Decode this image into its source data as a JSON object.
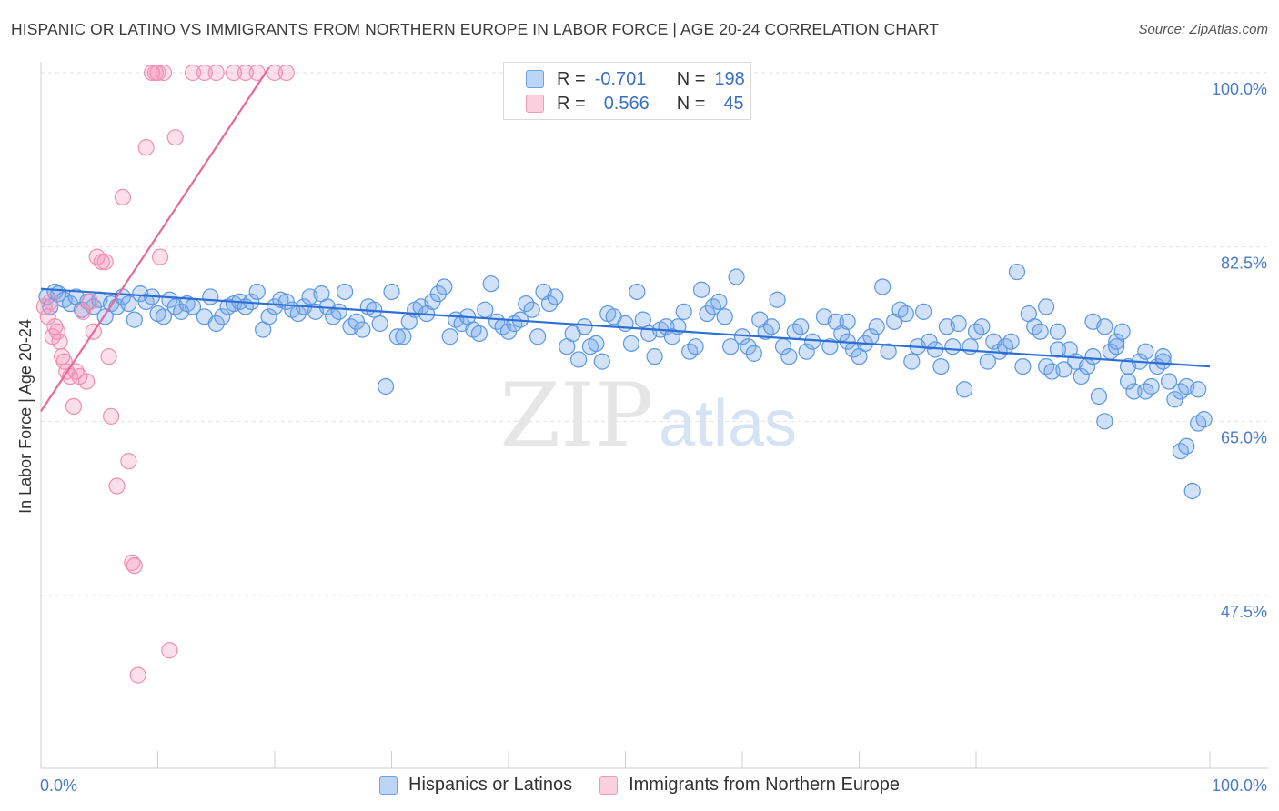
{
  "header": {
    "title": "HISPANIC OR LATINO VS IMMIGRANTS FROM NORTHERN EUROPE IN LABOR FORCE | AGE 20-24 CORRELATION CHART",
    "source": "Source: ZipAtlas.com"
  },
  "watermark": {
    "zip": "ZIP",
    "atlas": "atlas"
  },
  "legend": {
    "blue": {
      "r_key": "R =",
      "r_value": "-0.701",
      "n_key": "N =",
      "n_value": "198"
    },
    "pink": {
      "r_key": "R =",
      "r_value": "0.566",
      "n_key": "N =",
      "n_value": "45"
    }
  },
  "bottom_legend": {
    "blue_label": "Hispanics or Latinos",
    "pink_label": "Immigrants from Northern Europe"
  },
  "chart_data": {
    "type": "scatter",
    "title": "HISPANIC OR LATINO VS IMMIGRANTS FROM NORTHERN EUROPE IN LABOR FORCE | AGE 20-24 CORRELATION CHART",
    "xlabel": "",
    "ylabel": "In Labor Force | Age 20-24",
    "xlim": [
      0,
      100
    ],
    "ylim": [
      30,
      101.5
    ],
    "x_tick_labels": [
      "0.0%",
      "100.0%"
    ],
    "y_ticks": [
      47.5,
      65.0,
      82.5,
      100.0
    ],
    "y_tick_labels": [
      "47.5%",
      "65.0%",
      "82.5%",
      "100.0%"
    ],
    "grid": true,
    "legend_position": "top-center",
    "colors": {
      "blue": "#4a90e2",
      "pink": "#f07ba0",
      "blue_line": "#2e6fd6",
      "pink_line": "#e8689a",
      "tick_text": "#4a7cc9"
    },
    "series": [
      {
        "name": "Hispanics or Latinos",
        "color": "#4a90e2",
        "r": -0.701,
        "n": 198,
        "trend": {
          "x": [
            0,
            100
          ],
          "y": [
            78.3,
            70.5
          ]
        },
        "points": [
          [
            0.5,
            77.5
          ],
          [
            0.8,
            76.5
          ],
          [
            1.2,
            78.0
          ],
          [
            1.5,
            77.8
          ],
          [
            2.0,
            77.2
          ],
          [
            2.5,
            76.8
          ],
          [
            3.0,
            77.5
          ],
          [
            3.5,
            76.2
          ],
          [
            4.0,
            77.0
          ],
          [
            4.5,
            76.5
          ],
          [
            5.0,
            77.2
          ],
          [
            5.5,
            75.5
          ],
          [
            6.0,
            76.8
          ],
          [
            6.5,
            76.5
          ],
          [
            7.0,
            77.5
          ],
          [
            7.5,
            76.8
          ],
          [
            8.0,
            75.2
          ],
          [
            8.5,
            77.8
          ],
          [
            9.0,
            77.0
          ],
          [
            9.5,
            77.5
          ],
          [
            10.0,
            75.8
          ],
          [
            10.5,
            75.5
          ],
          [
            11.0,
            77.2
          ],
          [
            11.5,
            76.5
          ],
          [
            12.0,
            76.0
          ],
          [
            12.5,
            76.8
          ],
          [
            13.0,
            76.5
          ],
          [
            14.0,
            75.5
          ],
          [
            14.5,
            77.5
          ],
          [
            15.0,
            74.8
          ],
          [
            15.5,
            75.5
          ],
          [
            16.0,
            76.5
          ],
          [
            16.5,
            76.8
          ],
          [
            17.0,
            77.0
          ],
          [
            17.5,
            76.5
          ],
          [
            18.0,
            77.0
          ],
          [
            18.5,
            78.0
          ],
          [
            19.0,
            74.2
          ],
          [
            19.5,
            75.5
          ],
          [
            20.0,
            76.5
          ],
          [
            20.5,
            77.2
          ],
          [
            21.0,
            77.0
          ],
          [
            21.5,
            76.2
          ],
          [
            22.0,
            75.8
          ],
          [
            22.5,
            76.5
          ],
          [
            23.0,
            77.5
          ],
          [
            23.5,
            76.0
          ],
          [
            24.0,
            77.8
          ],
          [
            24.5,
            76.5
          ],
          [
            25.0,
            75.5
          ],
          [
            25.5,
            76.0
          ],
          [
            26.0,
            78.0
          ],
          [
            26.5,
            74.5
          ],
          [
            27.0,
            75.0
          ],
          [
            27.5,
            74.2
          ],
          [
            28.0,
            76.5
          ],
          [
            28.5,
            76.2
          ],
          [
            29.0,
            74.8
          ],
          [
            29.5,
            68.5
          ],
          [
            30.0,
            78.0
          ],
          [
            30.5,
            73.5
          ],
          [
            31.0,
            73.5
          ],
          [
            31.5,
            75.0
          ],
          [
            32.0,
            76.2
          ],
          [
            32.5,
            76.5
          ],
          [
            33.0,
            75.8
          ],
          [
            33.5,
            77.0
          ],
          [
            34.0,
            77.8
          ],
          [
            34.5,
            78.5
          ],
          [
            35.0,
            73.5
          ],
          [
            35.5,
            75.2
          ],
          [
            36.0,
            74.8
          ],
          [
            36.5,
            75.5
          ],
          [
            37.0,
            74.2
          ],
          [
            37.5,
            73.8
          ],
          [
            38.0,
            76.2
          ],
          [
            38.5,
            78.8
          ],
          [
            39.0,
            75.0
          ],
          [
            39.5,
            74.5
          ],
          [
            40.0,
            74.0
          ],
          [
            40.5,
            74.8
          ],
          [
            41.0,
            75.2
          ],
          [
            41.5,
            76.8
          ],
          [
            42.0,
            76.2
          ],
          [
            42.5,
            73.5
          ],
          [
            43.0,
            78.0
          ],
          [
            43.5,
            76.8
          ],
          [
            44.0,
            77.5
          ],
          [
            45.0,
            72.5
          ],
          [
            45.5,
            73.8
          ],
          [
            46.0,
            71.2
          ],
          [
            46.5,
            74.5
          ],
          [
            47.0,
            72.5
          ],
          [
            47.5,
            72.8
          ],
          [
            48.0,
            71.0
          ],
          [
            48.5,
            75.8
          ],
          [
            49.0,
            75.5
          ],
          [
            50.0,
            74.8
          ],
          [
            50.5,
            72.8
          ],
          [
            51.0,
            78.0
          ],
          [
            51.5,
            75.2
          ],
          [
            52.0,
            73.8
          ],
          [
            52.5,
            71.5
          ],
          [
            53.0,
            74.2
          ],
          [
            53.5,
            74.5
          ],
          [
            54.0,
            73.5
          ],
          [
            54.5,
            74.5
          ],
          [
            55.0,
            76.0
          ],
          [
            55.5,
            72.0
          ],
          [
            56.0,
            72.5
          ],
          [
            56.5,
            78.2
          ],
          [
            57.0,
            75.8
          ],
          [
            57.5,
            76.5
          ],
          [
            58.0,
            77.0
          ],
          [
            58.5,
            75.5
          ],
          [
            59.0,
            72.5
          ],
          [
            59.5,
            79.5
          ],
          [
            60.0,
            73.5
          ],
          [
            60.5,
            72.5
          ],
          [
            61.0,
            71.8
          ],
          [
            61.5,
            75.2
          ],
          [
            62.0,
            74.0
          ],
          [
            62.5,
            74.5
          ],
          [
            63.0,
            77.2
          ],
          [
            63.5,
            72.5
          ],
          [
            64.0,
            71.5
          ],
          [
            64.5,
            74.0
          ],
          [
            65.0,
            74.5
          ],
          [
            65.5,
            72.0
          ],
          [
            66.0,
            73.0
          ],
          [
            67.0,
            75.5
          ],
          [
            67.5,
            72.5
          ],
          [
            68.0,
            75.0
          ],
          [
            68.5,
            73.8
          ],
          [
            69.0,
            73.0
          ],
          [
            69.5,
            72.2
          ],
          [
            70.0,
            71.5
          ],
          [
            70.5,
            72.8
          ],
          [
            71.0,
            73.5
          ],
          [
            71.5,
            74.5
          ],
          [
            72.0,
            78.5
          ],
          [
            72.5,
            72.0
          ],
          [
            73.0,
            75.0
          ],
          [
            73.5,
            76.2
          ],
          [
            74.0,
            75.8
          ],
          [
            74.5,
            71.0
          ],
          [
            75.0,
            72.5
          ],
          [
            75.5,
            76.0
          ],
          [
            76.0,
            73.0
          ],
          [
            76.5,
            72.2
          ],
          [
            77.0,
            70.5
          ],
          [
            77.5,
            74.5
          ],
          [
            78.0,
            72.5
          ],
          [
            78.5,
            74.8
          ],
          [
            79.0,
            68.2
          ],
          [
            79.5,
            72.5
          ],
          [
            80.0,
            74.0
          ],
          [
            80.5,
            74.5
          ],
          [
            81.0,
            71.0
          ],
          [
            81.5,
            73.0
          ],
          [
            82.0,
            72.0
          ],
          [
            82.5,
            72.5
          ],
          [
            83.0,
            73.0
          ],
          [
            83.5,
            80.0
          ],
          [
            84.0,
            70.5
          ],
          [
            84.5,
            75.8
          ],
          [
            85.0,
            74.5
          ],
          [
            85.5,
            74.0
          ],
          [
            86.0,
            70.5
          ],
          [
            86.5,
            70.0
          ],
          [
            87.0,
            72.2
          ],
          [
            87.5,
            70.2
          ],
          [
            88.0,
            72.2
          ],
          [
            88.5,
            71.0
          ],
          [
            89.0,
            69.5
          ],
          [
            89.5,
            70.5
          ],
          [
            90.0,
            71.5
          ],
          [
            90.5,
            67.5
          ],
          [
            91.0,
            65.0
          ],
          [
            91.5,
            72.0
          ],
          [
            92.0,
            73.0
          ],
          [
            92.5,
            74.0
          ],
          [
            93.0,
            70.5
          ],
          [
            93.5,
            68.0
          ],
          [
            94.0,
            71.0
          ],
          [
            94.5,
            72.0
          ],
          [
            95.0,
            68.5
          ],
          [
            95.5,
            70.5
          ],
          [
            96.0,
            71.0
          ],
          [
            96.5,
            69.0
          ],
          [
            97.0,
            67.2
          ],
          [
            97.5,
            62.0
          ],
          [
            98.0,
            62.5
          ],
          [
            98.5,
            58.0
          ],
          [
            99.0,
            64.8
          ],
          [
            99.5,
            65.2
          ],
          [
            86.0,
            76.5
          ],
          [
            87.0,
            74.0
          ],
          [
            90.0,
            75.0
          ],
          [
            91.0,
            74.5
          ],
          [
            92.0,
            72.5
          ],
          [
            93.0,
            69.0
          ],
          [
            94.5,
            68.0
          ],
          [
            96.0,
            71.5
          ],
          [
            97.5,
            68.0
          ],
          [
            98.0,
            68.5
          ],
          [
            99.0,
            68.2
          ],
          [
            69.0,
            75.0
          ]
        ]
      },
      {
        "name": "Immigrants from Northern Europe",
        "color": "#f07ba0",
        "r": 0.566,
        "n": 45,
        "trend": {
          "x": [
            0,
            19.5
          ],
          "y": [
            66.0,
            100.5
          ]
        },
        "points": [
          [
            0.3,
            76.5
          ],
          [
            0.6,
            75.5
          ],
          [
            0.8,
            77.0
          ],
          [
            1.0,
            73.5
          ],
          [
            1.2,
            74.5
          ],
          [
            1.4,
            74.0
          ],
          [
            1.6,
            73.0
          ],
          [
            1.8,
            71.5
          ],
          [
            2.0,
            71.0
          ],
          [
            2.2,
            70.0
          ],
          [
            2.5,
            69.5
          ],
          [
            2.8,
            66.5
          ],
          [
            3.0,
            70.0
          ],
          [
            3.3,
            69.5
          ],
          [
            3.6,
            76.0
          ],
          [
            3.9,
            69.0
          ],
          [
            4.2,
            77.0
          ],
          [
            4.5,
            74.0
          ],
          [
            4.8,
            81.5
          ],
          [
            5.2,
            81.0
          ],
          [
            5.5,
            81.0
          ],
          [
            5.8,
            71.5
          ],
          [
            6.0,
            65.5
          ],
          [
            6.5,
            58.5
          ],
          [
            7.0,
            87.5
          ],
          [
            7.5,
            61.0
          ],
          [
            7.8,
            50.8
          ],
          [
            8.0,
            50.5
          ],
          [
            8.3,
            39.5
          ],
          [
            9.0,
            92.5
          ],
          [
            9.5,
            100.0
          ],
          [
            9.8,
            100.0
          ],
          [
            10.2,
            81.5
          ],
          [
            10.5,
            100.0
          ],
          [
            11.0,
            42.0
          ],
          [
            11.5,
            93.5
          ],
          [
            14.0,
            100.0
          ],
          [
            15.0,
            100.0
          ],
          [
            16.5,
            100.0
          ],
          [
            17.5,
            100.0
          ],
          [
            18.5,
            100.0
          ],
          [
            20.0,
            100.0
          ],
          [
            21.0,
            100.0
          ],
          [
            13.0,
            100.0
          ],
          [
            10.0,
            100.0
          ]
        ]
      }
    ]
  }
}
